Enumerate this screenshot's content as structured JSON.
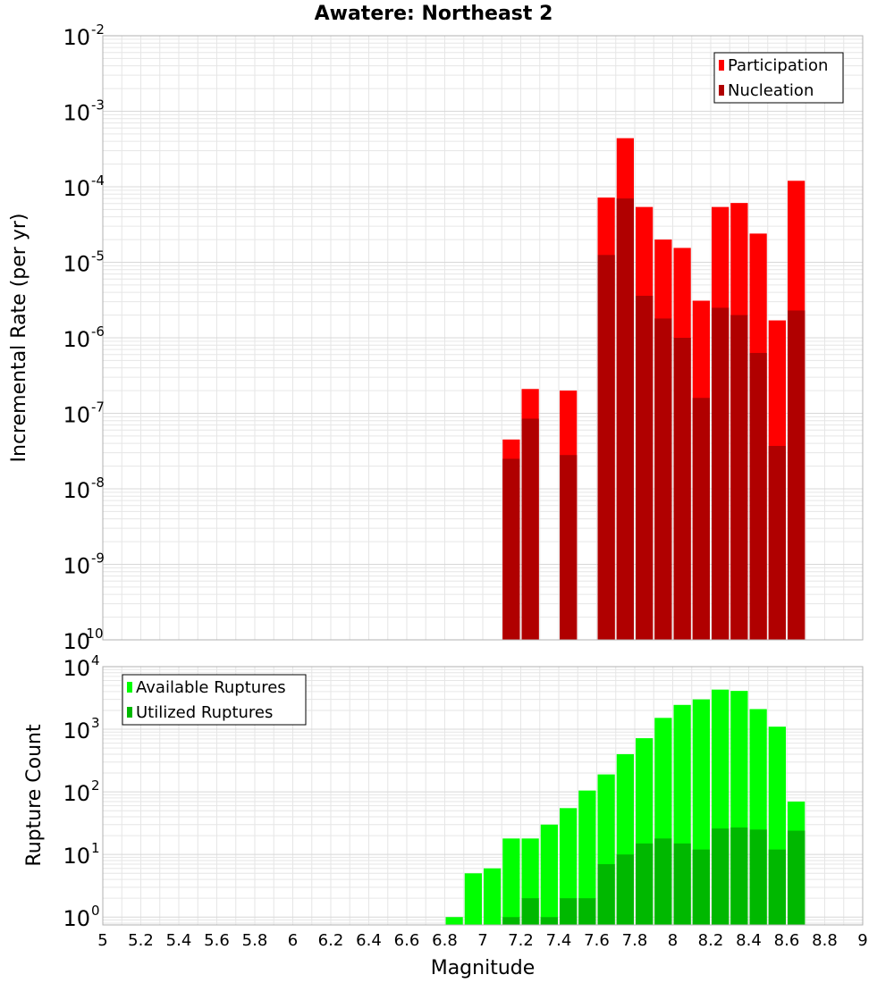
{
  "chart_data": [
    {
      "type": "bar",
      "title": "Awatere: Northeast 2",
      "xlabel": "Magnitude",
      "ylabel": "Incremental Rate (per yr)",
      "yscale": "log",
      "ylim": [
        1e-10,
        0.01
      ],
      "xlim": [
        5,
        9
      ],
      "bar_width": 0.1,
      "grid": true,
      "legend": {
        "position": "top-right"
      },
      "x": [
        7.15,
        7.25,
        7.45,
        7.65,
        7.75,
        7.85,
        7.95,
        8.05,
        8.15,
        8.25,
        8.35,
        8.45,
        8.55,
        8.65
      ],
      "series": [
        {
          "name": "Participation",
          "color": "#ff0000",
          "values": [
            4.5e-08,
            2.1e-07,
            2e-07,
            7.2e-05,
            0.00044,
            5.4e-05,
            2e-05,
            1.55e-05,
            3.1e-06,
            5.4e-05,
            6.1e-05,
            2.4e-05,
            1.7e-06,
            0.00012
          ]
        },
        {
          "name": "Nucleation",
          "color": "#b00000",
          "values": [
            2.5e-08,
            8.5e-08,
            2.8e-08,
            1.25e-05,
            7e-05,
            3.6e-06,
            1.8e-06,
            1e-06,
            1.6e-07,
            2.5e-06,
            2e-06,
            6.3e-07,
            3.7e-08,
            2.3e-06
          ]
        }
      ]
    },
    {
      "type": "bar",
      "xlabel": "Magnitude",
      "ylabel": "Rupture Count",
      "yscale": "log",
      "ylim": [
        0.75,
        10000
      ],
      "xlim": [
        5,
        9
      ],
      "bar_width": 0.1,
      "grid": true,
      "legend": {
        "position": "top-left"
      },
      "x": [
        6.85,
        6.95,
        7.05,
        7.15,
        7.25,
        7.35,
        7.45,
        7.55,
        7.65,
        7.75,
        7.85,
        7.95,
        8.05,
        8.15,
        8.25,
        8.35,
        8.45,
        8.55,
        8.65
      ],
      "series": [
        {
          "name": "Available Ruptures",
          "color": "#00ff00",
          "values": [
            1,
            5,
            6,
            18,
            18,
            30,
            55,
            105,
            190,
            400,
            720,
            1520,
            2450,
            3000,
            4300,
            4100,
            2100,
            1100,
            70
          ]
        },
        {
          "name": "Utilized Ruptures",
          "color": "#00b800",
          "values": [
            0,
            0,
            0,
            1,
            2,
            1,
            2,
            2,
            7,
            10,
            15,
            18,
            15,
            12,
            26,
            27,
            25,
            12,
            24
          ]
        }
      ]
    }
  ],
  "x_ticks": [
    "5",
    "5.2",
    "5.4",
    "5.6",
    "5.8",
    "6",
    "6.2",
    "6.4",
    "6.6",
    "6.8",
    "7",
    "7.2",
    "7.4",
    "7.6",
    "7.8",
    "8",
    "8.2",
    "8.4",
    "8.6",
    "8.8",
    "9"
  ],
  "top_y_ticks": [
    {
      "base": "10",
      "exp": "-2"
    },
    {
      "base": "10",
      "exp": "-3"
    },
    {
      "base": "10",
      "exp": "-4"
    },
    {
      "base": "10",
      "exp": "-5"
    },
    {
      "base": "10",
      "exp": "-6"
    },
    {
      "base": "10",
      "exp": "-7"
    },
    {
      "base": "10",
      "exp": "-8"
    },
    {
      "base": "10",
      "exp": "-9"
    },
    {
      "base": "10",
      "exp": "-10"
    }
  ],
  "bottom_y_ticks": [
    {
      "base": "10",
      "exp": "4"
    },
    {
      "base": "10",
      "exp": "3"
    },
    {
      "base": "10",
      "exp": "2"
    },
    {
      "base": "10",
      "exp": "1"
    },
    {
      "base": "10",
      "exp": "0"
    }
  ],
  "colors": {
    "grid": "#e6e6e6",
    "frame": "#b0b0b0",
    "bar_edge": "#ffffff"
  }
}
